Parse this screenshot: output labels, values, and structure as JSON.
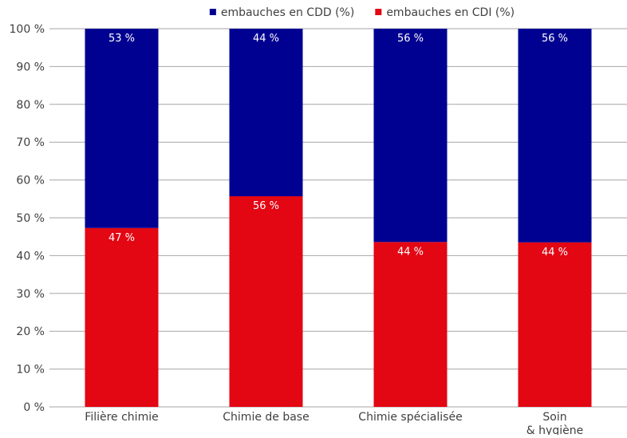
{
  "chart_data": {
    "type": "bar",
    "stacked": true,
    "categories": [
      "Filière chimie",
      "Chimie de base",
      "Chimie spécialisée",
      "Soin\n& hygiène"
    ],
    "series": [
      {
        "name": "embauches en CDI (%)",
        "values": [
          47.3,
          55.7,
          43.6,
          43.5
        ],
        "labels": [
          "47 %",
          "56 %",
          "44 %",
          "44 %"
        ],
        "color": "#e30613"
      },
      {
        "name": "embauches en CDD (%)",
        "values": [
          52.7,
          44.3,
          56.4,
          56.5
        ],
        "labels": [
          "53 %",
          "44 %",
          "56 %",
          "56 %"
        ],
        "color": "#000091"
      }
    ],
    "legend_order": [
      1,
      0
    ],
    "legend_position": "top",
    "ylim": [
      0,
      100
    ],
    "yticks": [
      0,
      10,
      20,
      30,
      40,
      50,
      60,
      70,
      80,
      90,
      100
    ],
    "ytick_labels": [
      "0 %",
      "10 %",
      "20 %",
      "30 %",
      "40 %",
      "50 %",
      "60 %",
      "70 %",
      "80 %",
      "90 %",
      "100 %"
    ],
    "grid": true,
    "grid_color": "#a6a6a6",
    "axis_label_color": "#404040",
    "data_label_color": "#ffffff"
  }
}
